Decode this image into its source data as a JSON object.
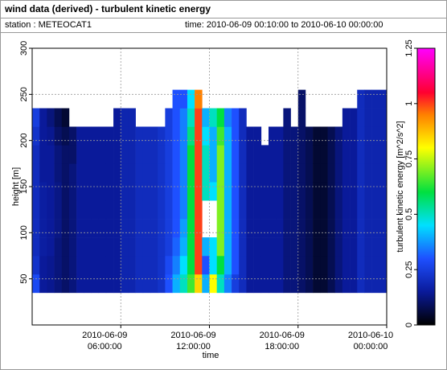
{
  "chart_data": {
    "type": "heatmap",
    "title": "wind data (derived) - turbulent kinetic energy",
    "station": "station : METEOCAT1",
    "time_range": "time: 2010-06-09 00:10:00 to 2010-06-10 00:00:00",
    "xlabel": "time",
    "ylabel": "height [m]",
    "colorbar_label": "turbulent kinetic energy [m^2/s^2]",
    "xlim": [
      0,
      24
    ],
    "ylim": [
      0,
      300
    ],
    "zlim": [
      0,
      1.25
    ],
    "xticks": [
      {
        "value": 6,
        "label": [
          "2010-06-09",
          "06:00:00"
        ]
      },
      {
        "value": 12,
        "label": [
          "2010-06-09",
          "12:00:00"
        ]
      },
      {
        "value": 18,
        "label": [
          "2010-06-09",
          "18:00:00"
        ]
      },
      {
        "value": 24,
        "label": [
          "2010-06-10",
          "00:00:00"
        ]
      }
    ],
    "yticks": [
      50,
      100,
      150,
      200,
      250,
      300
    ],
    "zticks": [
      0,
      0.25,
      0.5,
      0.75,
      1,
      1.25
    ],
    "grid": true,
    "colorscale": [
      [
        0,
        "#000000"
      ],
      [
        0.15,
        "#0a1a9a"
      ],
      [
        0.3,
        "#1e50ff"
      ],
      [
        0.45,
        "#00e0ff"
      ],
      [
        0.6,
        "#00e040"
      ],
      [
        0.8,
        "#ffff00"
      ],
      [
        0.95,
        "#ff8000"
      ],
      [
        1.05,
        "#ff0030"
      ],
      [
        1.25,
        "#ff00ff"
      ]
    ],
    "xbins": [
      0,
      0.5,
      1,
      1.5,
      2,
      2.5,
      3,
      3.5,
      4,
      4.5,
      5,
      5.5,
      6,
      6.5,
      7,
      7.5,
      8,
      8.5,
      9,
      9.5,
      10,
      10.5,
      11,
      11.5,
      12,
      12.5,
      13,
      13.5,
      14,
      14.5,
      15,
      15.5,
      16,
      16.5,
      17,
      17.5,
      18,
      18.5,
      19,
      19.5,
      20,
      20.5,
      21,
      21.5,
      22,
      22.5,
      23,
      23.5,
      24
    ],
    "ybins": [
      35,
      55,
      75,
      95,
      115,
      135,
      155,
      175,
      195,
      215,
      235,
      255
    ],
    "z": [
      [
        0.28,
        0.22,
        0.2,
        0.2,
        0.2,
        0.2,
        0.2,
        0.2,
        0.22,
        0.25,
        null
      ],
      [
        0.15,
        0.15,
        0.16,
        0.16,
        0.16,
        0.16,
        0.15,
        0.15,
        0.15,
        0.15,
        null
      ],
      [
        0.14,
        0.14,
        0.15,
        0.15,
        0.15,
        0.15,
        0.15,
        0.15,
        0.14,
        0.12,
        null
      ],
      [
        0.12,
        0.12,
        0.12,
        0.13,
        0.13,
        0.13,
        0.12,
        0.12,
        0.1,
        0.08,
        null
      ],
      [
        0.1,
        0.1,
        0.1,
        0.1,
        0.1,
        0.1,
        0.1,
        0.1,
        0.08,
        0.05,
        null
      ],
      [
        0.12,
        0.12,
        0.12,
        0.12,
        0.12,
        0.12,
        0.12,
        0.1,
        0.1,
        null,
        null
      ],
      [
        0.15,
        0.15,
        0.15,
        0.15,
        0.15,
        0.15,
        0.15,
        0.15,
        0.15,
        null,
        null
      ],
      [
        0.15,
        0.15,
        0.15,
        0.15,
        0.15,
        0.15,
        0.15,
        0.15,
        0.15,
        null,
        null
      ],
      [
        0.15,
        0.15,
        0.15,
        0.15,
        0.15,
        0.15,
        0.15,
        0.15,
        0.15,
        null,
        null
      ],
      [
        0.15,
        0.15,
        0.15,
        0.15,
        0.15,
        0.15,
        0.15,
        0.15,
        0.15,
        null,
        null
      ],
      [
        0.15,
        0.15,
        0.15,
        0.15,
        0.15,
        0.15,
        0.15,
        0.15,
        0.15,
        null,
        null
      ],
      [
        0.15,
        0.15,
        0.15,
        0.15,
        0.15,
        0.15,
        0.15,
        0.15,
        0.15,
        0.15,
        null
      ],
      [
        0.18,
        0.18,
        0.18,
        0.18,
        0.18,
        0.18,
        0.18,
        0.18,
        0.18,
        0.18,
        null
      ],
      [
        0.18,
        0.18,
        0.18,
        0.18,
        0.18,
        0.18,
        0.18,
        0.18,
        0.18,
        0.18,
        null
      ],
      [
        0.2,
        0.2,
        0.2,
        0.2,
        0.2,
        0.2,
        0.2,
        0.2,
        0.2,
        null,
        null
      ],
      [
        0.2,
        0.2,
        0.2,
        0.2,
        0.2,
        0.2,
        0.2,
        0.2,
        0.2,
        null,
        null
      ],
      [
        0.2,
        0.2,
        0.2,
        0.2,
        0.2,
        0.2,
        0.2,
        0.2,
        0.2,
        null,
        null
      ],
      [
        0.22,
        0.22,
        0.22,
        0.22,
        0.22,
        0.22,
        0.22,
        0.22,
        0.22,
        null,
        null
      ],
      [
        0.3,
        0.28,
        0.25,
        0.25,
        0.25,
        0.25,
        0.25,
        0.25,
        0.25,
        0.25,
        null
      ],
      [
        0.4,
        0.35,
        0.32,
        0.3,
        0.3,
        0.3,
        0.3,
        0.3,
        0.3,
        0.3,
        0.3
      ],
      [
        0.5,
        0.45,
        0.4,
        0.38,
        0.35,
        0.35,
        0.35,
        0.35,
        0.35,
        0.35,
        0.3
      ],
      [
        0.65,
        0.6,
        0.6,
        0.6,
        0.6,
        0.6,
        0.6,
        0.6,
        0.55,
        0.5,
        0.45
      ],
      [
        0.85,
        1,
        1,
        1,
        1,
        1,
        1,
        1,
        1,
        1,
        0.95
      ],
      [
        0.4,
        0.3,
        0.4,
        null,
        null,
        0.5,
        0.5,
        0.5,
        0.45,
        0.4,
        null
      ],
      [
        0.8,
        0.45,
        0.45,
        null,
        null,
        0.45,
        0.4,
        0.4,
        0.4,
        0.5,
        null
      ],
      [
        0.5,
        0.6,
        0.7,
        0.7,
        0.7,
        0.7,
        0.7,
        0.7,
        0.65,
        0.6,
        null
      ],
      [
        0.35,
        0.4,
        0.4,
        0.4,
        0.4,
        0.4,
        0.4,
        0.4,
        0.4,
        0.35,
        null
      ],
      [
        0.25,
        0.3,
        0.3,
        0.3,
        0.3,
        0.3,
        0.3,
        0.3,
        0.3,
        0.3,
        null
      ],
      [
        0.2,
        0.2,
        0.2,
        0.2,
        0.2,
        0.2,
        0.2,
        0.2,
        0.2,
        0.2,
        null
      ],
      [
        0.15,
        0.15,
        0.15,
        0.15,
        0.15,
        0.15,
        0.15,
        0.15,
        0.15,
        null,
        null
      ],
      [
        0.15,
        0.15,
        0.15,
        0.15,
        0.15,
        0.15,
        0.15,
        0.15,
        0.15,
        null,
        null
      ],
      [
        0.15,
        0.15,
        0.15,
        0.15,
        0.15,
        0.15,
        0.15,
        0.15,
        null,
        null,
        null
      ],
      [
        0.15,
        0.15,
        0.15,
        0.15,
        0.15,
        0.15,
        0.15,
        0.15,
        0.15,
        null,
        null
      ],
      [
        0.15,
        0.15,
        0.15,
        0.15,
        0.15,
        0.15,
        0.15,
        0.15,
        0.15,
        null,
        null
      ],
      [
        0.12,
        0.12,
        0.12,
        0.12,
        0.12,
        0.12,
        0.12,
        0.12,
        0.12,
        0.12,
        null
      ],
      [
        0.12,
        0.12,
        0.12,
        0.12,
        0.12,
        0.12,
        0.12,
        0.12,
        0.12,
        null,
        null
      ],
      [
        0.1,
        0.1,
        0.1,
        0.1,
        0.1,
        0.1,
        0.1,
        0.1,
        0.1,
        0.1,
        0.1
      ],
      [
        0.08,
        0.08,
        0.08,
        0.08,
        0.08,
        0.08,
        0.08,
        0.08,
        0.08,
        null,
        null
      ],
      [
        0.05,
        0.05,
        0.05,
        0.05,
        0.05,
        0.05,
        0.05,
        0.05,
        0.05,
        null,
        null
      ],
      [
        0.05,
        0.05,
        0.05,
        0.05,
        0.05,
        0.05,
        0.05,
        0.05,
        0.05,
        null,
        null
      ],
      [
        0.08,
        0.08,
        0.08,
        0.08,
        0.08,
        0.08,
        0.08,
        0.08,
        0.08,
        null,
        null
      ],
      [
        0.12,
        0.12,
        0.12,
        0.12,
        0.12,
        0.12,
        0.12,
        0.12,
        0.12,
        null,
        null
      ],
      [
        0.15,
        0.15,
        0.15,
        0.15,
        0.15,
        0.15,
        0.15,
        0.15,
        0.15,
        0.15,
        null
      ],
      [
        0.15,
        0.15,
        0.15,
        0.15,
        0.15,
        0.15,
        0.15,
        0.15,
        0.15,
        0.15,
        null
      ],
      [
        0.2,
        0.2,
        0.2,
        0.2,
        0.2,
        0.2,
        0.2,
        0.2,
        0.2,
        0.2,
        0.2
      ],
      [
        0.18,
        0.18,
        0.18,
        0.18,
        0.18,
        0.18,
        0.18,
        0.18,
        0.18,
        0.18,
        0.18
      ],
      [
        0.18,
        0.18,
        0.18,
        0.18,
        0.18,
        0.18,
        0.18,
        0.18,
        0.18,
        0.18,
        0.18
      ],
      [
        0.18,
        0.18,
        0.18,
        0.18,
        0.18,
        0.18,
        0.18,
        0.18,
        0.18,
        0.18,
        0.18
      ]
    ]
  }
}
